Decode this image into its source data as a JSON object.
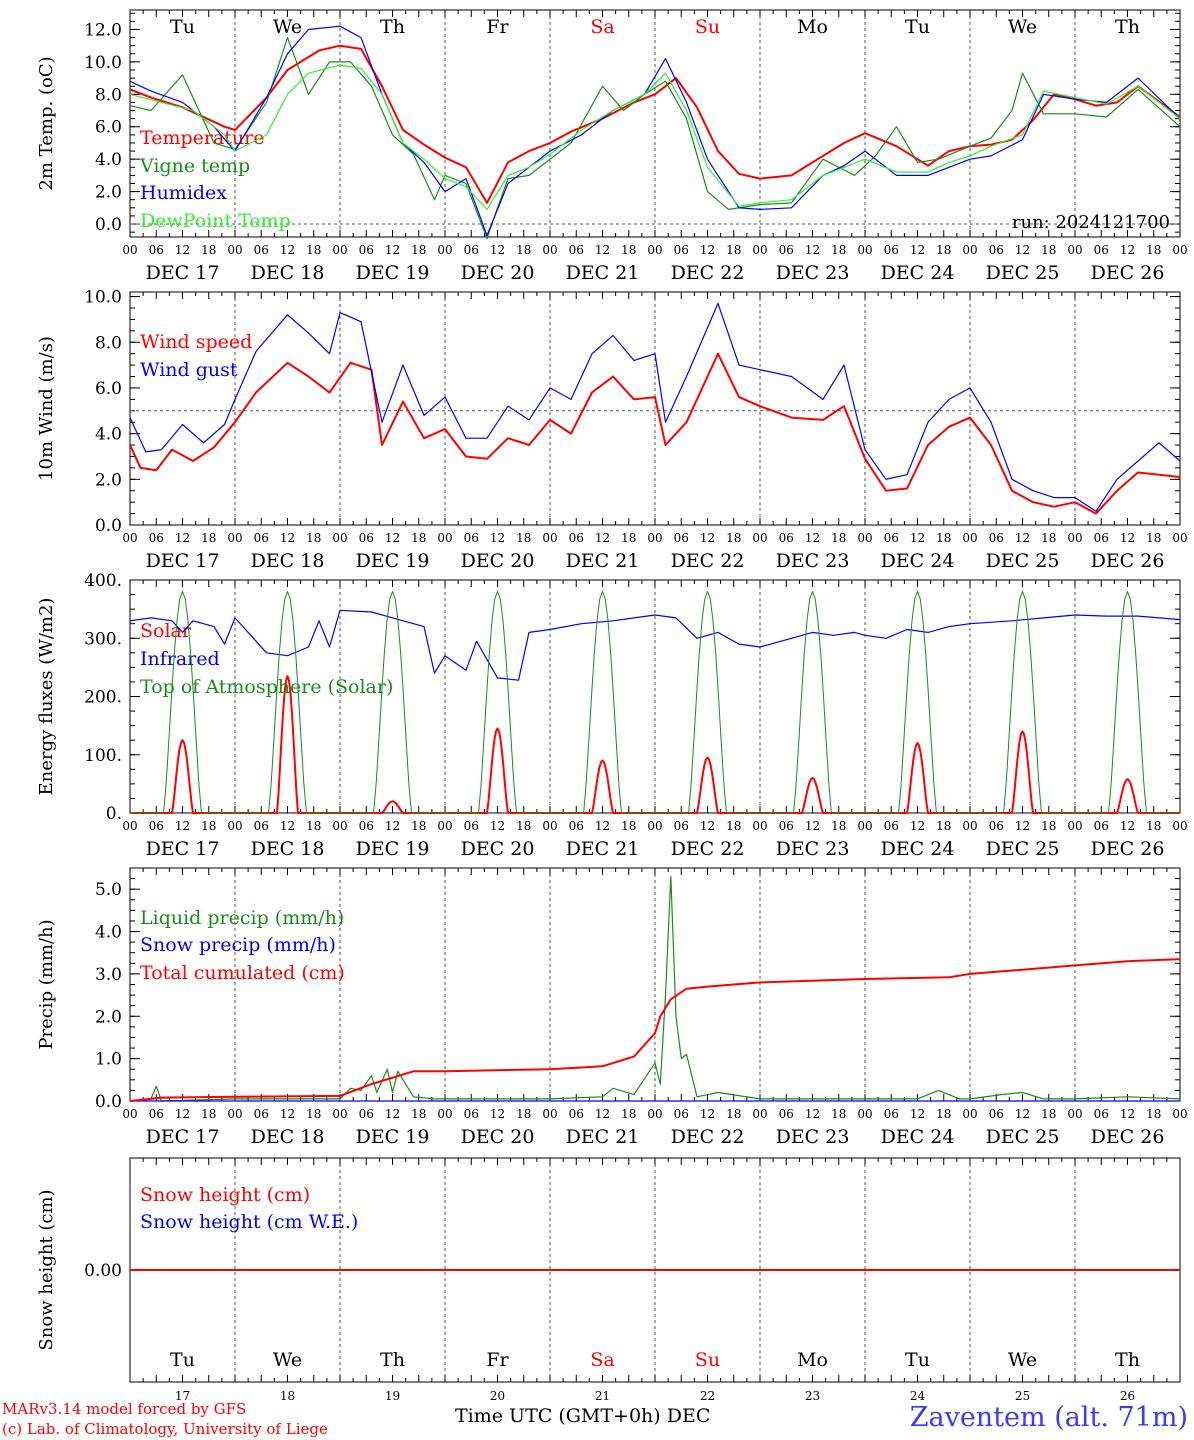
{
  "colors": {
    "red": "#ff0000",
    "green": "#1a8c1a",
    "blue": "#0000ff",
    "light_green": "#33ee33",
    "axis": "#000000",
    "grid": "#555555"
  },
  "day_names": [
    "Tu",
    "We",
    "Th",
    "Fr",
    "Sa",
    "Su",
    "Mo",
    "Tu",
    "We",
    "Th"
  ],
  "weekend_days": [
    "Sa",
    "Su"
  ],
  "date_labels": [
    "DEC 17",
    "DEC 18",
    "DEC 19",
    "DEC 20",
    "DEC 21",
    "DEC 22",
    "DEC 23",
    "DEC 24",
    "DEC 25",
    "DEC 26"
  ],
  "hour_labels": [
    "00",
    "06",
    "12",
    "18"
  ],
  "day_numbers": [
    "17",
    "18",
    "19",
    "20",
    "21",
    "22",
    "23",
    "24",
    "25",
    "26"
  ],
  "footer": {
    "model": "MARv3.14 model forced by GFS",
    "credit": "(c) Lab. of Climatology, University of Liege",
    "time_axis": "Time UTC (GMT+0h) DEC",
    "station": "Zaventem (alt. 71m)"
  },
  "chart_data": [
    {
      "type": "line",
      "ylabel": "2m Temp. (oC)",
      "ylim": [
        -0.8,
        13.2
      ],
      "yticks": [
        "12.0",
        "10.0",
        "8.0",
        "6.0",
        "4.0",
        "2.0",
        "0.0"
      ],
      "ytick_values": [
        12,
        10,
        8,
        6,
        4,
        2,
        0
      ],
      "ref_line": 0,
      "annotation": "run: 2024121700",
      "series": [
        {
          "name": "Temperature",
          "color": "#ff0000",
          "x": [
            0,
            0.2,
            0.5,
            0.9,
            1.0,
            1.3,
            1.5,
            1.8,
            2.0,
            2.2,
            2.4,
            2.6,
            2.8,
            3.0,
            3.2,
            3.4,
            3.6,
            3.8,
            4.0,
            4.2,
            4.5,
            4.8,
            5.0,
            5.2,
            5.4,
            5.6,
            5.8,
            6.0,
            6.3,
            6.6,
            6.8,
            7.0,
            7.3,
            7.6,
            7.8,
            8.0,
            8.2,
            8.4,
            8.6,
            8.8,
            9.0,
            9.2,
            9.4,
            9.6,
            10.0
          ],
          "y": [
            8.3,
            7.8,
            7.2,
            6.0,
            5.8,
            7.8,
            9.5,
            10.7,
            11.0,
            10.8,
            8.5,
            5.8,
            4.9,
            4.1,
            3.5,
            1.3,
            3.8,
            4.5,
            5.0,
            5.7,
            6.5,
            7.5,
            8.0,
            9.0,
            7.2,
            4.5,
            3.1,
            2.8,
            3.0,
            4.2,
            5.0,
            5.6,
            4.8,
            3.6,
            4.5,
            4.8,
            4.9,
            5.2,
            6.4,
            8.0,
            7.7,
            7.3,
            7.5,
            8.5,
            6.6
          ]
        },
        {
          "name": "Vigne temp",
          "color": "#1a8c1a",
          "x": [
            0,
            0.2,
            0.5,
            0.8,
            1.0,
            1.3,
            1.5,
            1.7,
            1.9,
            2.1,
            2.3,
            2.5,
            2.7,
            2.9,
            3.0,
            3.2,
            3.4,
            3.5,
            3.6,
            3.8,
            4.0,
            4.2,
            4.5,
            4.7,
            4.9,
            5.1,
            5.3,
            5.5,
            5.7,
            6.0,
            6.3,
            6.6,
            6.9,
            7.1,
            7.3,
            7.5,
            7.7,
            8.0,
            8.2,
            8.4,
            8.5,
            8.7,
            9.0,
            9.3,
            9.6,
            10.0
          ],
          "y": [
            7.3,
            7.0,
            9.2,
            5.0,
            4.6,
            7.5,
            11.5,
            8.0,
            10.0,
            10.0,
            8.5,
            5.5,
            4.3,
            1.5,
            3.0,
            2.5,
            -0.9,
            1.0,
            2.8,
            3.0,
            4.0,
            5.0,
            8.5,
            7.0,
            8.0,
            8.8,
            6.5,
            2.0,
            0.9,
            1.2,
            1.3,
            4.0,
            3.0,
            4.2,
            6.0,
            3.8,
            4.0,
            4.8,
            5.3,
            7.0,
            9.3,
            6.8,
            6.8,
            6.6,
            8.3,
            6.0
          ]
        },
        {
          "name": "Humidex",
          "color": "#0000ff",
          "x": [
            0,
            0.2,
            0.5,
            0.8,
            1.0,
            1.3,
            1.5,
            1.7,
            2.0,
            2.2,
            2.4,
            2.6,
            2.8,
            3.0,
            3.2,
            3.4,
            3.6,
            3.8,
            4.0,
            4.3,
            4.6,
            4.9,
            5.1,
            5.3,
            5.5,
            5.8,
            6.0,
            6.3,
            6.6,
            6.8,
            7.0,
            7.3,
            7.6,
            7.8,
            8.0,
            8.2,
            8.5,
            8.7,
            9.0,
            9.3,
            9.6,
            10.0
          ],
          "y": [
            8.8,
            8.2,
            7.5,
            6.0,
            4.5,
            7.8,
            10.5,
            12.0,
            12.2,
            11.5,
            8.0,
            5.0,
            3.8,
            2.0,
            2.8,
            -0.7,
            2.5,
            3.5,
            4.5,
            5.5,
            7.0,
            8.0,
            10.2,
            7.5,
            4.0,
            1.0,
            0.9,
            1.0,
            3.0,
            3.6,
            4.5,
            3.0,
            3.0,
            3.5,
            4.0,
            4.2,
            5.2,
            8.0,
            7.7,
            7.5,
            9.0,
            6.5
          ]
        },
        {
          "name": "DewPoint Temp",
          "color": "#33ee33",
          "x": [
            0,
            0.3,
            0.6,
            0.9,
            1.0,
            1.3,
            1.5,
            1.7,
            2.0,
            2.2,
            2.4,
            2.6,
            2.8,
            3.0,
            3.2,
            3.4,
            3.6,
            3.8,
            4.0,
            4.3,
            4.6,
            4.9,
            5.1,
            5.3,
            5.5,
            5.8,
            6.0,
            6.3,
            6.6,
            6.8,
            7.0,
            7.3,
            7.6,
            7.8,
            8.0,
            8.2,
            8.5,
            8.7,
            9.0,
            9.3,
            9.6,
            10.0
          ],
          "y": [
            8.0,
            7.5,
            7.0,
            5.5,
            4.5,
            5.5,
            8.0,
            9.3,
            9.8,
            9.6,
            8.0,
            5.0,
            4.0,
            2.8,
            2.3,
            0.9,
            3.0,
            3.5,
            4.3,
            5.8,
            7.0,
            8.0,
            9.3,
            7.0,
            3.5,
            1.1,
            1.3,
            1.5,
            3.0,
            3.5,
            4.0,
            3.2,
            3.2,
            3.8,
            4.2,
            4.8,
            5.5,
            8.2,
            7.8,
            7.4,
            8.5,
            6.5
          ]
        }
      ]
    },
    {
      "type": "line",
      "ylabel": "10m Wind (m/s)",
      "ylim": [
        0,
        10.2
      ],
      "yticks": [
        "10.0",
        "8.0",
        "6.0",
        "4.0",
        "2.0",
        "0.0"
      ],
      "ytick_values": [
        10,
        8,
        6,
        4,
        2,
        0
      ],
      "ref_line": 5,
      "series": [
        {
          "name": "Wind speed",
          "color": "#ff0000",
          "x": [
            0,
            0.1,
            0.25,
            0.4,
            0.6,
            0.8,
            1.0,
            1.2,
            1.5,
            1.7,
            1.9,
            2.1,
            2.3,
            2.4,
            2.6,
            2.8,
            3.0,
            3.2,
            3.4,
            3.6,
            3.8,
            4.0,
            4.2,
            4.4,
            4.6,
            4.8,
            5.0,
            5.1,
            5.3,
            5.6,
            5.8,
            6.0,
            6.3,
            6.6,
            6.8,
            7.0,
            7.2,
            7.4,
            7.6,
            7.8,
            8.0,
            8.2,
            8.4,
            8.6,
            8.8,
            9.0,
            9.2,
            9.4,
            9.6,
            10.0
          ],
          "y": [
            3.5,
            2.5,
            2.4,
            3.3,
            2.8,
            3.4,
            4.5,
            5.8,
            7.1,
            6.5,
            5.8,
            7.1,
            6.8,
            3.5,
            5.4,
            3.8,
            4.2,
            3.0,
            2.9,
            3.8,
            3.5,
            4.6,
            4.0,
            5.8,
            6.5,
            5.5,
            5.6,
            3.5,
            4.5,
            7.5,
            5.6,
            5.2,
            4.7,
            4.6,
            5.2,
            2.9,
            1.5,
            1.6,
            3.5,
            4.3,
            4.7,
            3.5,
            1.5,
            1.0,
            0.8,
            1.0,
            0.5,
            1.5,
            2.3,
            2.1
          ]
        },
        {
          "name": "Wind gust",
          "color": "#0000ff",
          "x": [
            0,
            0.15,
            0.3,
            0.5,
            0.7,
            0.9,
            1.0,
            1.2,
            1.5,
            1.7,
            1.9,
            2.0,
            2.2,
            2.4,
            2.6,
            2.8,
            3.0,
            3.2,
            3.4,
            3.6,
            3.8,
            4.0,
            4.2,
            4.4,
            4.6,
            4.8,
            5.0,
            5.1,
            5.3,
            5.6,
            5.8,
            6.0,
            6.3,
            6.6,
            6.8,
            7.0,
            7.2,
            7.4,
            7.6,
            7.8,
            8.0,
            8.2,
            8.4,
            8.6,
            8.8,
            9.0,
            9.2,
            9.4,
            9.6,
            9.8,
            10.0
          ],
          "y": [
            4.7,
            3.2,
            3.3,
            4.4,
            3.6,
            4.4,
            5.5,
            7.6,
            9.2,
            8.4,
            7.5,
            9.3,
            8.9,
            4.5,
            7.0,
            4.8,
            5.6,
            3.8,
            3.8,
            5.2,
            4.6,
            6.0,
            5.5,
            7.5,
            8.3,
            7.2,
            7.5,
            4.5,
            6.5,
            9.7,
            7.0,
            6.8,
            6.5,
            5.5,
            7.0,
            3.3,
            2.0,
            2.2,
            4.5,
            5.5,
            6.0,
            4.5,
            2.0,
            1.5,
            1.2,
            1.2,
            0.6,
            2.0,
            2.8,
            3.6,
            2.8
          ]
        }
      ]
    },
    {
      "type": "line",
      "ylabel": "Energy fluxes (W/m2)",
      "ylim": [
        0,
        400
      ],
      "yticks": [
        "400.",
        "300.",
        "200.",
        "100.",
        "0."
      ],
      "ytick_values": [
        400,
        300,
        200,
        100,
        0
      ],
      "series": [
        {
          "name": "Solar",
          "color": "#ff0000",
          "peaks": [
            125,
            235,
            20,
            145,
            90,
            95,
            60,
            120,
            140,
            58
          ]
        },
        {
          "name": "Infrared",
          "color": "#0000ff",
          "x": [
            0,
            0.2,
            0.4,
            0.5,
            0.6,
            0.8,
            0.9,
            1.0,
            1.3,
            1.5,
            1.7,
            1.8,
            1.9,
            2.0,
            2.3,
            2.6,
            2.8,
            2.9,
            3.0,
            3.2,
            3.3,
            3.5,
            3.7,
            3.8,
            4.0,
            4.3,
            4.6,
            5.0,
            5.2,
            5.4,
            5.6,
            5.8,
            6.0,
            6.3,
            6.5,
            6.7,
            6.9,
            7.0,
            7.2,
            7.4,
            7.6,
            7.8,
            8.0,
            8.4,
            8.7,
            9.0,
            9.3,
            9.6,
            10.0
          ],
          "y": [
            330,
            335,
            330,
            310,
            330,
            320,
            290,
            335,
            275,
            270,
            285,
            330,
            285,
            348,
            345,
            330,
            320,
            240,
            270,
            245,
            295,
            232,
            228,
            310,
            315,
            325,
            330,
            340,
            335,
            300,
            310,
            290,
            285,
            300,
            310,
            305,
            310,
            305,
            300,
            315,
            310,
            320,
            325,
            330,
            335,
            340,
            338,
            338,
            332
          ]
        },
        {
          "name": "Top of Atmosphere (Solar)",
          "color": "#1a8c1a",
          "peaks": [
            380,
            380,
            380,
            380,
            380,
            380,
            380,
            380,
            380,
            380
          ]
        }
      ]
    },
    {
      "type": "line",
      "ylabel": "Precip (mm/h)",
      "ylim": [
        0,
        5.5
      ],
      "yticks": [
        "5.0",
        "4.0",
        "3.0",
        "2.0",
        "1.0",
        "0.0"
      ],
      "ytick_values": [
        5,
        4,
        3,
        2,
        1,
        0
      ],
      "series": [
        {
          "name": "Liquid precip (mm/h)",
          "color": "#1a8c1a",
          "x": [
            0,
            0.2,
            0.25,
            0.3,
            1.0,
            2.0,
            2.1,
            2.2,
            2.3,
            2.35,
            2.45,
            2.5,
            2.55,
            2.7,
            2.9,
            3.5,
            4.0,
            4.5,
            4.6,
            4.8,
            5.0,
            5.05,
            5.1,
            5.15,
            5.2,
            5.25,
            5.3,
            5.4,
            5.6,
            6.0,
            7.0,
            7.5,
            7.7,
            7.9,
            8.0,
            8.3,
            8.5,
            8.7,
            9.0,
            9.5,
            10.0
          ],
          "y": [
            0,
            0.05,
            0.35,
            0.0,
            0.05,
            0.05,
            0.3,
            0.25,
            0.6,
            0.2,
            0.75,
            0.2,
            0.7,
            0.1,
            0.05,
            0.05,
            0.05,
            0.1,
            0.3,
            0.15,
            0.9,
            0.4,
            2.5,
            5.3,
            2.0,
            1.0,
            1.1,
            0.1,
            0.2,
            0.05,
            0.05,
            0.05,
            0.25,
            0.05,
            0.05,
            0.15,
            0.2,
            0.05,
            0.05,
            0.1,
            0.05
          ]
        },
        {
          "name": "Snow precip (mm/h)",
          "color": "#0000ff",
          "x": [
            0,
            10.0
          ],
          "y": [
            0,
            0
          ]
        },
        {
          "name": "Total cumulated (cm)",
          "color": "#ff0000",
          "x": [
            0,
            0.3,
            1.0,
            2.0,
            2.3,
            2.7,
            3.0,
            4.0,
            4.5,
            4.8,
            5.0,
            5.05,
            5.15,
            5.3,
            5.5,
            6.0,
            7.0,
            7.8,
            8.0,
            8.5,
            9.0,
            9.5,
            10.0
          ],
          "y": [
            0,
            0.08,
            0.1,
            0.12,
            0.4,
            0.7,
            0.7,
            0.75,
            0.82,
            1.05,
            1.6,
            2.0,
            2.4,
            2.65,
            2.7,
            2.8,
            2.88,
            2.92,
            3.0,
            3.1,
            3.2,
            3.3,
            3.35
          ]
        }
      ]
    },
    {
      "type": "line",
      "ylabel": "Snow height (cm)",
      "ylim": [
        -1,
        1
      ],
      "yticks": [
        "0.00"
      ],
      "ytick_values": [
        0
      ],
      "series": [
        {
          "name": "Snow height (cm)",
          "color": "#ff0000",
          "x": [
            0,
            10
          ],
          "y": [
            0,
            0
          ]
        },
        {
          "name": "Snow height (cm W.E.)",
          "color": "#0000ff",
          "x": [],
          "y": []
        }
      ]
    }
  ]
}
